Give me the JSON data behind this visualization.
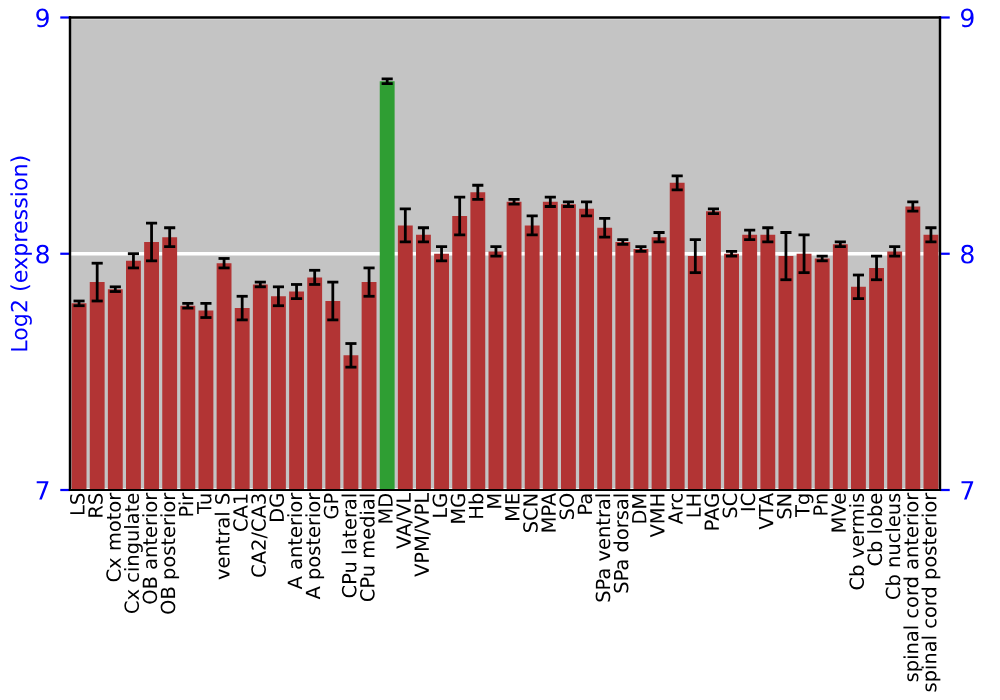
{
  "chart_data": {
    "type": "bar",
    "ylabel": "Log2 (expression)",
    "categories": [
      "LS",
      "RS",
      "Cx motor",
      "Cx cingulate",
      "OB anterior",
      "OB posterior",
      "Pir",
      "Tu",
      "ventral S",
      "CA1",
      "CA2/CA3",
      "DG",
      "A anterior",
      "A posterior",
      "GP",
      "CPu lateral",
      "CPu medial",
      "MD",
      "VA/VL",
      "VPM/VPL",
      "LG",
      "MG",
      "Hb",
      "M",
      "ME",
      "SCN",
      "MPA",
      "SO",
      "Pa",
      "SPa ventral",
      "SPa dorsal",
      "DM",
      "VMH",
      "Arc",
      "LH",
      "PAG",
      "SC",
      "IC",
      "VTA",
      "SN",
      "Tg",
      "Pn",
      "MVe",
      "Cb vermis",
      "Cb lobe",
      "Cb nucleus",
      "spinal cord anterior",
      "spinal cord posterior"
    ],
    "values": [
      7.79,
      7.88,
      7.85,
      7.97,
      8.05,
      8.07,
      7.78,
      7.76,
      7.96,
      7.77,
      7.87,
      7.82,
      7.84,
      7.9,
      7.8,
      7.57,
      7.88,
      8.73,
      8.12,
      8.08,
      8.0,
      8.16,
      8.26,
      8.01,
      8.22,
      8.12,
      8.22,
      8.21,
      8.19,
      8.11,
      8.05,
      8.02,
      8.07,
      8.3,
      7.99,
      8.18,
      8.0,
      8.08,
      8.08,
      7.99,
      8.0,
      7.98,
      8.04,
      7.86,
      7.94,
      8.01,
      8.2,
      8.08
    ],
    "errors": [
      0.01,
      0.08,
      0.01,
      0.03,
      0.08,
      0.04,
      0.01,
      0.03,
      0.02,
      0.05,
      0.01,
      0.04,
      0.03,
      0.03,
      0.08,
      0.05,
      0.06,
      0.01,
      0.07,
      0.03,
      0.03,
      0.08,
      0.03,
      0.02,
      0.01,
      0.04,
      0.02,
      0.01,
      0.03,
      0.04,
      0.01,
      0.01,
      0.02,
      0.03,
      0.07,
      0.01,
      0.01,
      0.02,
      0.03,
      0.1,
      0.08,
      0.01,
      0.01,
      0.05,
      0.05,
      0.02,
      0.02,
      0.03
    ],
    "colors": [
      "#b23434",
      "#b23434",
      "#b23434",
      "#b23434",
      "#b23434",
      "#b23434",
      "#b23434",
      "#b23434",
      "#b23434",
      "#b23434",
      "#b23434",
      "#b23434",
      "#b23434",
      "#b23434",
      "#b23434",
      "#b23434",
      "#b23434",
      "#2f9e33",
      "#b23434",
      "#b23434",
      "#b23434",
      "#b23434",
      "#b23434",
      "#b23434",
      "#b23434",
      "#b23434",
      "#b23434",
      "#b23434",
      "#b23434",
      "#b23434",
      "#b23434",
      "#b23434",
      "#b23434",
      "#b23434",
      "#b23434",
      "#b23434",
      "#b23434",
      "#b23434",
      "#b23434",
      "#b23434",
      "#b23434",
      "#b23434",
      "#b23434",
      "#b23434",
      "#b23434",
      "#b23434",
      "#b23434",
      "#b23434"
    ],
    "ylim": [
      7,
      9
    ],
    "yticks": [
      7,
      8,
      9
    ],
    "y2lim": [
      7,
      9
    ],
    "y2ticks": [
      7,
      8,
      9
    ],
    "grid": "y"
  }
}
